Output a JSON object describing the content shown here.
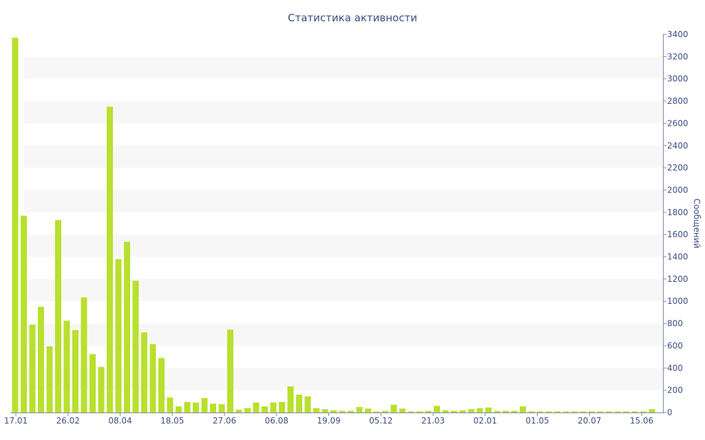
{
  "chart_data": {
    "type": "bar",
    "title": "Статистика активности",
    "ylabel": "Сообщений",
    "ylim": [
      0,
      3400
    ],
    "y_ticks": [
      0,
      200,
      400,
      600,
      800,
      1000,
      1200,
      1400,
      1600,
      1800,
      2000,
      2200,
      2400,
      2600,
      2800,
      3000,
      3200,
      3400
    ],
    "y_axis_position": "right",
    "grid": "alternating horizontal bands",
    "x_tick_labels": [
      "17.01",
      "26.02",
      "08.04",
      "18.05",
      "27.06",
      "06.08",
      "19.09",
      "05.12",
      "21.03",
      "02.01",
      "01.05",
      "20.07",
      "15.06"
    ],
    "bar_color": "#b8e02e",
    "values": [
      3370,
      1770,
      790,
      950,
      595,
      1730,
      825,
      740,
      1035,
      525,
      410,
      2750,
      1380,
      1535,
      1185,
      720,
      615,
      490,
      135,
      55,
      95,
      90,
      130,
      80,
      75,
      745,
      25,
      40,
      90,
      55,
      90,
      95,
      235,
      160,
      145,
      40,
      30,
      20,
      15,
      15,
      50,
      35,
      10,
      15,
      70,
      35,
      10,
      10,
      15,
      60,
      20,
      15,
      20,
      30,
      40,
      45,
      15,
      15,
      15,
      55,
      10,
      10,
      10,
      10,
      10,
      10,
      10,
      10,
      10,
      10,
      10,
      10,
      10,
      10,
      30
    ]
  }
}
